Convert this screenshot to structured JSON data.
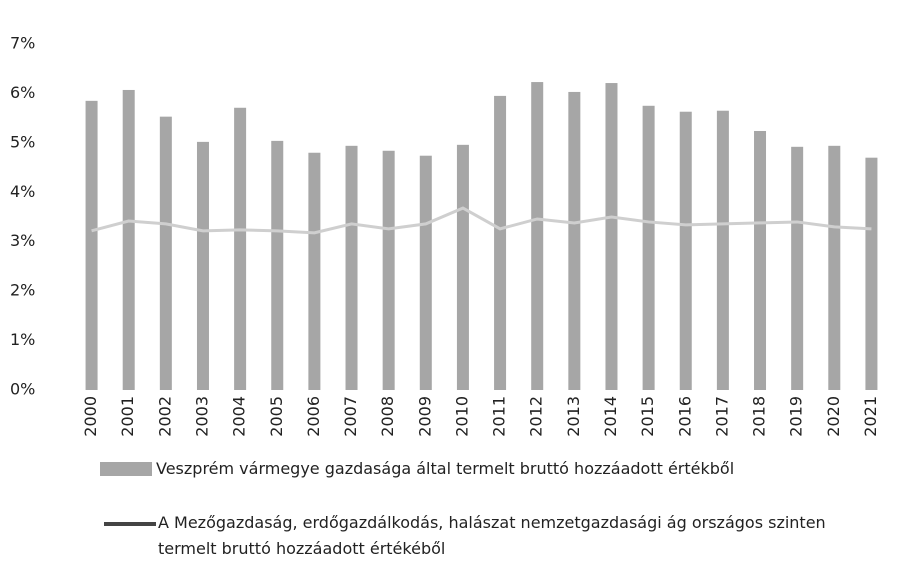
{
  "chart_data": {
    "type": "bar",
    "categories": [
      "2000",
      "2001",
      "2002",
      "2003",
      "2004",
      "2005",
      "2006",
      "2007",
      "2008",
      "2009",
      "2010",
      "2011",
      "2012",
      "2013",
      "2014",
      "2015",
      "2016",
      "2017",
      "2018",
      "2019",
      "2020",
      "2021"
    ],
    "series": [
      {
        "name": "Veszprém vármegye gazdasága által termelt bruttó hozzáadott értékből",
        "type": "bar",
        "color": "#a6a6a6",
        "values": [
          5.85,
          6.07,
          5.53,
          5.02,
          5.71,
          5.04,
          4.8,
          4.94,
          4.84,
          4.74,
          4.96,
          5.95,
          6.23,
          6.03,
          6.21,
          5.75,
          5.63,
          5.65,
          5.24,
          4.92,
          4.94,
          4.7
        ]
      },
      {
        "name": "A Mezőgazdaság, erdőgazdálkodás, halászat nemzetgazdasági ág országos szinten termelt bruttó hozzáadott értékéből",
        "type": "line",
        "color": "#cfcfcf",
        "values": [
          3.22,
          3.42,
          3.36,
          3.22,
          3.24,
          3.22,
          3.18,
          3.36,
          3.26,
          3.36,
          3.68,
          3.26,
          3.46,
          3.38,
          3.5,
          3.4,
          3.34,
          3.36,
          3.38,
          3.4,
          3.3,
          3.26
        ]
      }
    ],
    "ylim": [
      0,
      7
    ],
    "yticks": [
      {
        "value": 0,
        "label": "0%"
      },
      {
        "value": 1,
        "label": "1%"
      },
      {
        "value": 2,
        "label": "2%"
      },
      {
        "value": 3,
        "label": "3%"
      },
      {
        "value": 4,
        "label": "4%"
      },
      {
        "value": 5,
        "label": "5%"
      },
      {
        "value": 6,
        "label": "6%"
      },
      {
        "value": 7,
        "label": "7%"
      }
    ],
    "grid": false
  }
}
